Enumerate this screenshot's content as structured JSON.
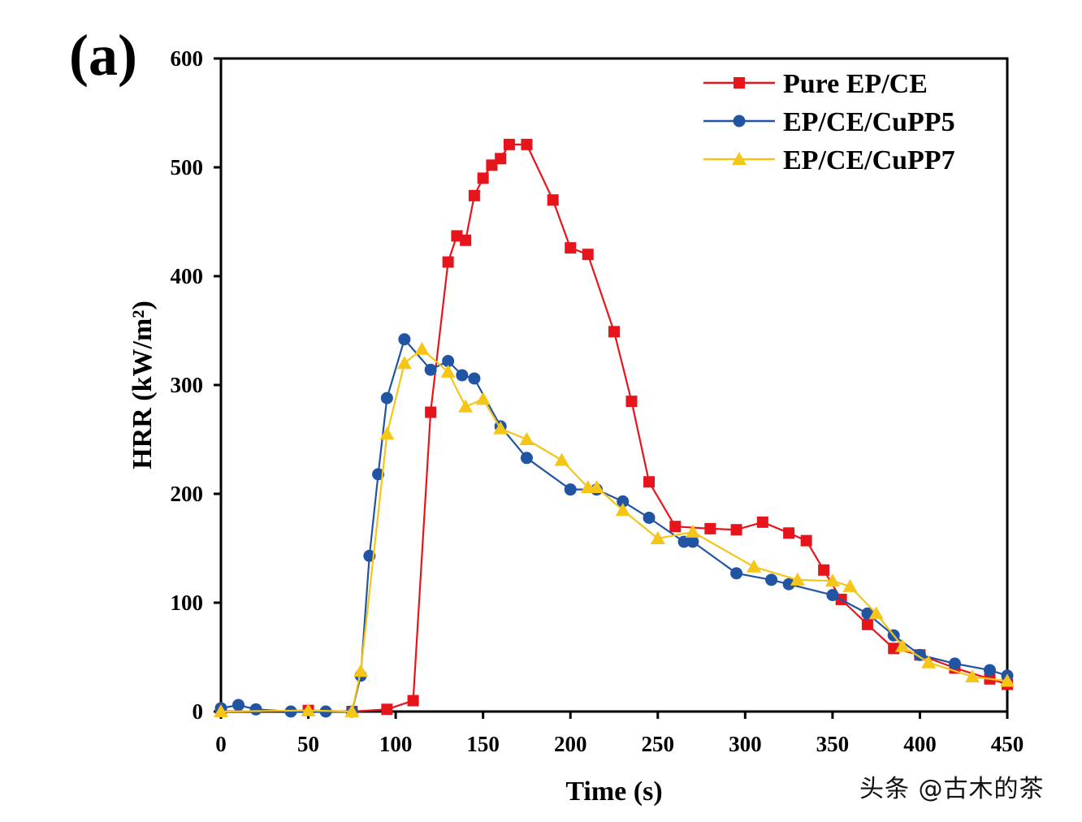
{
  "chart_data": {
    "type": "line",
    "panel_label": "(a)",
    "xlabel": "Time (s)",
    "ylabel": "HRR (kW/m²)",
    "xlim": [
      0,
      450
    ],
    "ylim": [
      0,
      600
    ],
    "xticks": [
      0,
      50,
      100,
      150,
      200,
      250,
      300,
      350,
      400,
      450
    ],
    "yticks": [
      0,
      100,
      200,
      300,
      400,
      500,
      600
    ],
    "grid": false,
    "legend_position": "top-right",
    "series": [
      {
        "name": "Pure EP/CE",
        "color": "#e8141c",
        "marker": "square",
        "x": [
          0,
          50,
          75,
          95,
          110,
          120,
          130,
          135,
          140,
          145,
          150,
          155,
          160,
          165,
          175,
          190,
          200,
          210,
          225,
          235,
          245,
          260,
          280,
          295,
          310,
          325,
          335,
          345,
          355,
          370,
          385,
          400,
          420,
          440,
          450
        ],
        "y": [
          0,
          1,
          0,
          2,
          10,
          275,
          413,
          437,
          433,
          474,
          490,
          502,
          508,
          521,
          521,
          470,
          426,
          420,
          349,
          285,
          211,
          170,
          168,
          167,
          174,
          164,
          157,
          130,
          103,
          80,
          58,
          52,
          40,
          30,
          25
        ]
      },
      {
        "name": "EP/CE/CuPP5",
        "color": "#2155a3",
        "marker": "circle",
        "x": [
          0,
          10,
          20,
          40,
          60,
          75,
          80,
          85,
          90,
          95,
          105,
          120,
          130,
          138,
          145,
          160,
          175,
          200,
          215,
          230,
          245,
          265,
          270,
          295,
          315,
          325,
          350,
          370,
          385,
          400,
          420,
          440,
          450
        ],
        "y": [
          3,
          6,
          2,
          0,
          0,
          0,
          33,
          143,
          218,
          288,
          342,
          314,
          322,
          309,
          306,
          262,
          233,
          204,
          204,
          193,
          178,
          156,
          156,
          127,
          121,
          117,
          107,
          90,
          70,
          52,
          44,
          38,
          33
        ]
      },
      {
        "name": "EP/CE/CuPP7",
        "color": "#f5c518",
        "marker": "triangle",
        "x": [
          0,
          50,
          75,
          80,
          95,
          105,
          115,
          130,
          140,
          150,
          160,
          175,
          195,
          210,
          215,
          230,
          250,
          270,
          305,
          330,
          350,
          360,
          375,
          390,
          405,
          430,
          450
        ],
        "y": [
          0,
          1,
          0,
          37,
          255,
          320,
          333,
          312,
          280,
          287,
          260,
          250,
          231,
          206,
          206,
          185,
          159,
          165,
          133,
          121,
          120,
          115,
          90,
          60,
          45,
          32,
          28
        ]
      }
    ]
  },
  "watermark": "头条 @古木的茶"
}
